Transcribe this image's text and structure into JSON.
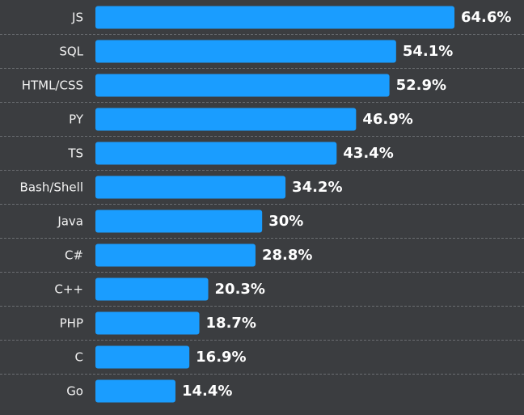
{
  "colors": {
    "background": "#3b3d40",
    "bar": "#1a9dff",
    "grid": "#6a6d71",
    "text": "#f2f2f2"
  },
  "chart_data": {
    "type": "bar",
    "orientation": "horizontal",
    "title": "",
    "xlabel": "",
    "ylabel": "",
    "xlim": [
      0,
      64.6
    ],
    "grid": true,
    "categories": [
      "JS",
      "SQL",
      "HTML/CSS",
      "PY",
      "TS",
      "Bash/Shell",
      "Java",
      "C#",
      "C++",
      "PHP",
      "C",
      "Go"
    ],
    "values": [
      64.6,
      54.1,
      52.9,
      46.9,
      43.4,
      34.2,
      30,
      28.8,
      20.3,
      18.7,
      16.9,
      14.4
    ],
    "value_labels": [
      "64.6%",
      "54.1%",
      "52.9%",
      "46.9%",
      "43.4%",
      "34.2%",
      "30%",
      "28.8%",
      "20.3%",
      "18.7%",
      "16.9%",
      "14.4%"
    ]
  }
}
